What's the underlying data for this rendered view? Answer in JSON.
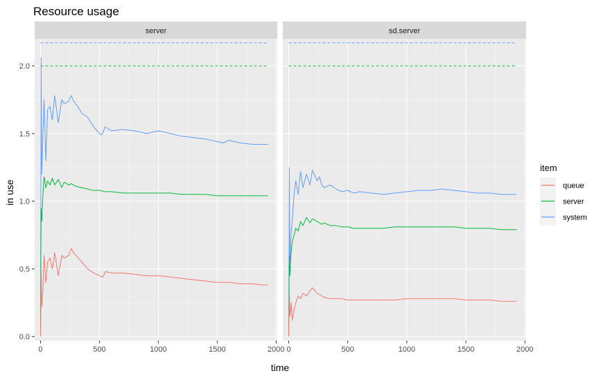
{
  "chart_data": {
    "type": "line",
    "title": "Resource usage",
    "xlabel": "time",
    "ylabel": "in use",
    "xlim": [
      -50,
      2010
    ],
    "ylim": [
      -0.03,
      2.2
    ],
    "x_ticks": [
      0,
      500,
      1000,
      1500,
      2000
    ],
    "y_ticks": [
      0.0,
      0.5,
      1.0,
      1.5,
      2.0
    ],
    "y_tick_labels": [
      "0.0",
      "0.5",
      "1.0",
      "1.5",
      "2.0"
    ],
    "grid": true,
    "legend": {
      "title": "item",
      "position": "right",
      "entries": [
        {
          "name": "queue",
          "color": "#F8766D"
        },
        {
          "name": "server",
          "color": "#00BA38"
        },
        {
          "name": "system",
          "color": "#619CFF"
        }
      ]
    },
    "panels": [
      {
        "label": "server",
        "limits": [
          {
            "item": "server",
            "value": 2.0,
            "x": [
              0,
              1930
            ],
            "color": "#00BA38"
          },
          {
            "item": "system",
            "value": 2.17,
            "x": [
              0,
              1930
            ],
            "color": "#619CFF"
          }
        ],
        "series": [
          {
            "name": "system",
            "color": "#619CFF",
            "x": [
              0,
              5,
              10,
              20,
              30,
              45,
              60,
              80,
              100,
              120,
              150,
              180,
              200,
              240,
              260,
              280,
              300,
              350,
              400,
              450,
              500,
              520,
              550,
              600,
              700,
              800,
              900,
              1000,
              1100,
              1200,
              1300,
              1400,
              1500,
              1550,
              1600,
              1700,
              1800,
              1900,
              1930
            ],
            "y": [
              0.05,
              2.06,
              1.2,
              1.5,
              1.75,
              1.3,
              1.68,
              1.7,
              1.6,
              1.78,
              1.58,
              1.75,
              1.72,
              1.74,
              1.78,
              1.74,
              1.72,
              1.65,
              1.62,
              1.55,
              1.5,
              1.49,
              1.55,
              1.52,
              1.53,
              1.52,
              1.5,
              1.52,
              1.5,
              1.48,
              1.47,
              1.46,
              1.44,
              1.43,
              1.45,
              1.43,
              1.42,
              1.42,
              1.42
            ]
          },
          {
            "name": "server",
            "color": "#00BA38",
            "x": [
              0,
              5,
              10,
              20,
              30,
              45,
              60,
              80,
              100,
              120,
              150,
              180,
              200,
              240,
              260,
              280,
              300,
              350,
              400,
              450,
              500,
              550,
              600,
              700,
              800,
              900,
              1000,
              1100,
              1200,
              1300,
              1400,
              1500,
              1600,
              1700,
              1800,
              1900,
              1930
            ],
            "y": [
              0.05,
              0.95,
              0.85,
              1.05,
              1.18,
              1.1,
              1.15,
              1.12,
              1.17,
              1.12,
              1.16,
              1.1,
              1.14,
              1.12,
              1.13,
              1.12,
              1.11,
              1.1,
              1.09,
              1.08,
              1.08,
              1.07,
              1.07,
              1.06,
              1.06,
              1.06,
              1.06,
              1.06,
              1.05,
              1.05,
              1.05,
              1.04,
              1.04,
              1.04,
              1.04,
              1.04,
              1.04
            ]
          },
          {
            "name": "queue",
            "color": "#F8766D",
            "x": [
              0,
              5,
              10,
              20,
              30,
              45,
              60,
              80,
              100,
              120,
              150,
              180,
              200,
              240,
              260,
              280,
              300,
              350,
              400,
              450,
              500,
              530,
              550,
              600,
              700,
              800,
              900,
              1000,
              1100,
              1200,
              1300,
              1400,
              1500,
              1600,
              1700,
              1800,
              1900,
              1930
            ],
            "y": [
              0.0,
              0.5,
              0.22,
              0.35,
              0.6,
              0.4,
              0.55,
              0.58,
              0.5,
              0.62,
              0.45,
              0.6,
              0.58,
              0.6,
              0.65,
              0.62,
              0.6,
              0.55,
              0.5,
              0.47,
              0.45,
              0.44,
              0.48,
              0.47,
              0.47,
              0.46,
              0.45,
              0.45,
              0.44,
              0.43,
              0.42,
              0.41,
              0.4,
              0.4,
              0.39,
              0.39,
              0.38,
              0.38
            ]
          }
        ]
      },
      {
        "label": "sd.server",
        "limits": [
          {
            "item": "server",
            "value": 2.0,
            "x": [
              0,
              1930
            ],
            "color": "#00BA38"
          },
          {
            "item": "system",
            "value": 2.17,
            "x": [
              0,
              1930
            ],
            "color": "#619CFF"
          }
        ],
        "series": [
          {
            "name": "system",
            "color": "#619CFF",
            "x": [
              0,
              5,
              10,
              20,
              30,
              45,
              60,
              80,
              100,
              120,
              150,
              180,
              200,
              240,
              260,
              280,
              300,
              350,
              400,
              450,
              500,
              550,
              600,
              700,
              800,
              900,
              1000,
              1100,
              1200,
              1300,
              1400,
              1500,
              1600,
              1700,
              1800,
              1900,
              1930
            ],
            "y": [
              0.03,
              1.25,
              0.55,
              0.75,
              0.85,
              1.05,
              1.15,
              1.05,
              1.22,
              1.1,
              1.2,
              1.12,
              1.23,
              1.15,
              1.18,
              1.12,
              1.1,
              1.12,
              1.09,
              1.07,
              1.08,
              1.06,
              1.07,
              1.06,
              1.05,
              1.06,
              1.07,
              1.08,
              1.08,
              1.09,
              1.08,
              1.07,
              1.06,
              1.06,
              1.05,
              1.05,
              1.05
            ]
          },
          {
            "name": "server",
            "color": "#00BA38",
            "x": [
              0,
              5,
              10,
              20,
              30,
              45,
              60,
              80,
              100,
              120,
              150,
              180,
              200,
              240,
              260,
              280,
              300,
              350,
              400,
              450,
              500,
              550,
              600,
              700,
              800,
              900,
              1000,
              1100,
              1200,
              1300,
              1400,
              1500,
              1600,
              1700,
              1800,
              1900,
              1930
            ],
            "y": [
              0.03,
              0.6,
              0.45,
              0.62,
              0.7,
              0.75,
              0.8,
              0.78,
              0.85,
              0.82,
              0.88,
              0.84,
              0.87,
              0.85,
              0.84,
              0.83,
              0.84,
              0.82,
              0.82,
              0.81,
              0.81,
              0.8,
              0.8,
              0.8,
              0.8,
              0.81,
              0.81,
              0.81,
              0.81,
              0.81,
              0.81,
              0.8,
              0.8,
              0.8,
              0.79,
              0.79,
              0.79
            ]
          },
          {
            "name": "queue",
            "color": "#F8766D",
            "x": [
              0,
              5,
              10,
              20,
              30,
              45,
              60,
              80,
              100,
              120,
              150,
              180,
              200,
              240,
              260,
              280,
              300,
              350,
              400,
              450,
              500,
              550,
              600,
              700,
              800,
              900,
              1000,
              1100,
              1200,
              1300,
              1400,
              1500,
              1600,
              1700,
              1800,
              1900,
              1930
            ],
            "y": [
              0.0,
              0.35,
              0.15,
              0.25,
              0.12,
              0.2,
              0.25,
              0.3,
              0.28,
              0.32,
              0.3,
              0.34,
              0.36,
              0.32,
              0.31,
              0.3,
              0.29,
              0.28,
              0.28,
              0.28,
              0.27,
              0.27,
              0.27,
              0.27,
              0.27,
              0.27,
              0.28,
              0.28,
              0.28,
              0.28,
              0.28,
              0.27,
              0.27,
              0.27,
              0.26,
              0.26,
              0.26
            ]
          }
        ]
      }
    ]
  }
}
